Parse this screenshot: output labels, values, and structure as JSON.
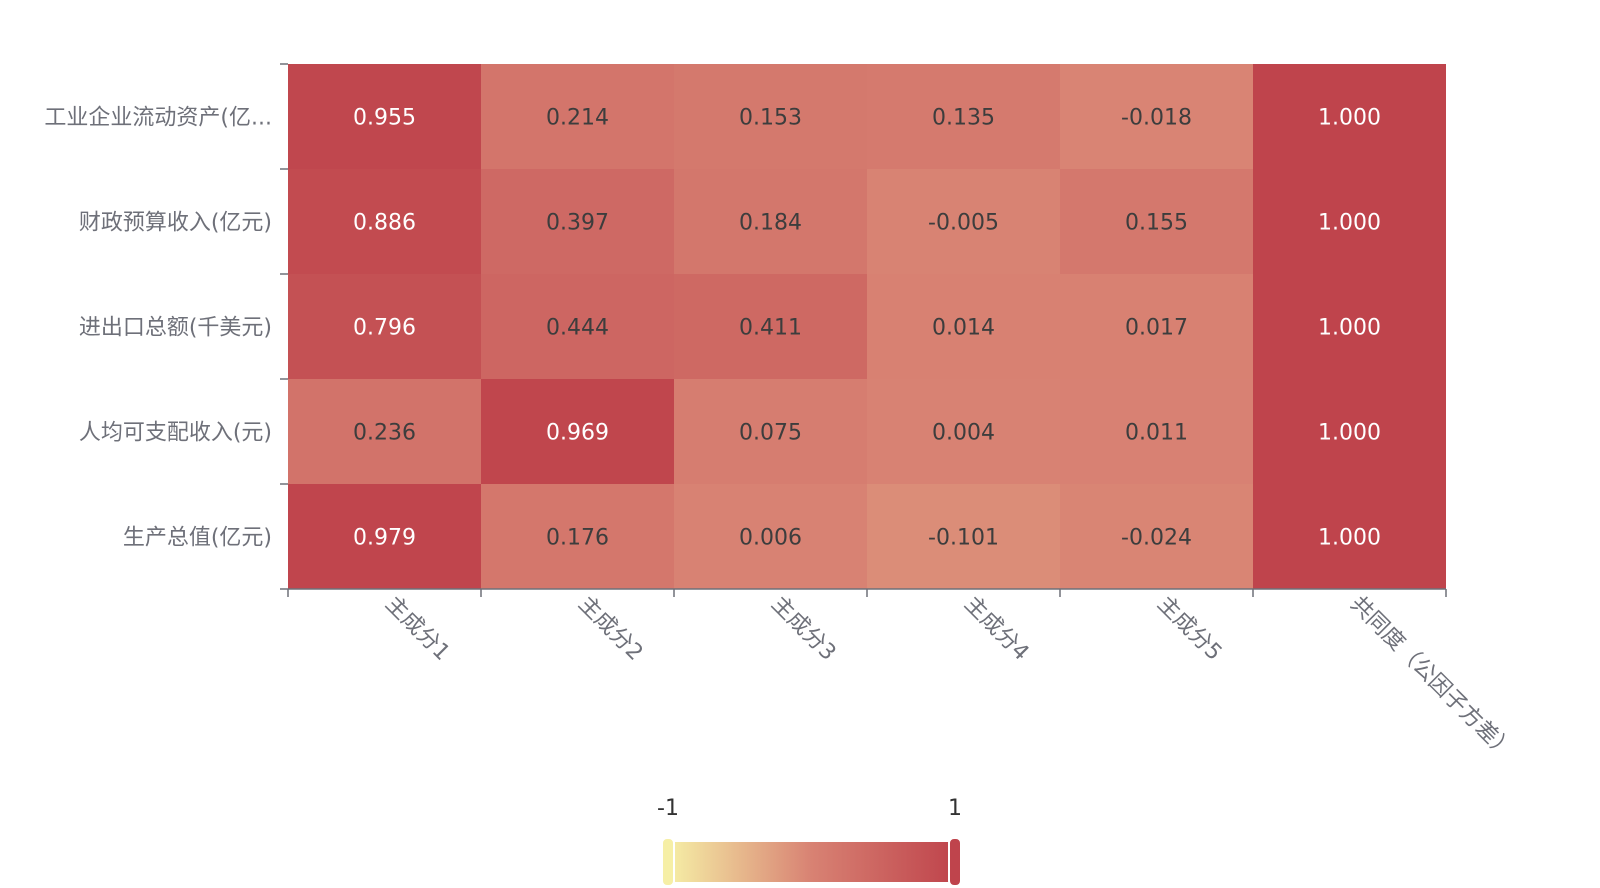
{
  "chart_data": {
    "type": "heatmap",
    "rows": [
      "工业企业流动资产(亿...",
      "财政预算收入(亿元)",
      "进出口总额(千美元)",
      "人均可支配收入(元)",
      "生产总值(亿元)"
    ],
    "columns": [
      "主成分1",
      "主成分2",
      "主成分3",
      "主成分4",
      "主成分5",
      "共同度（公因子方差）"
    ],
    "values": [
      [
        0.955,
        0.214,
        0.153,
        0.135,
        -0.018,
        1.0
      ],
      [
        0.886,
        0.397,
        0.184,
        -0.005,
        0.155,
        1.0
      ],
      [
        0.796,
        0.444,
        0.411,
        0.014,
        0.017,
        1.0
      ],
      [
        0.236,
        0.969,
        0.075,
        0.004,
        0.011,
        1.0
      ],
      [
        0.979,
        0.176,
        0.006,
        -0.101,
        -0.024,
        1.0
      ]
    ],
    "value_labels": [
      [
        "0.955",
        "0.214",
        "0.153",
        "0.135",
        "-0.018",
        "1.000"
      ],
      [
        "0.886",
        "0.397",
        "0.184",
        "-0.005",
        "0.155",
        "1.000"
      ],
      [
        "0.796",
        "0.444",
        "0.411",
        "0.014",
        "0.017",
        "1.000"
      ],
      [
        "0.236",
        "0.969",
        "0.075",
        "0.004",
        "0.011",
        "1.000"
      ],
      [
        "0.979",
        "0.176",
        "0.006",
        "-0.101",
        "-0.024",
        "1.000"
      ]
    ],
    "visual_map": {
      "min": -1,
      "max": 1,
      "min_label": "-1",
      "max_label": "1",
      "colors": [
        "#f6efa6",
        "#d88273",
        "#bf444c"
      ]
    },
    "legend": "none",
    "grid": false
  }
}
